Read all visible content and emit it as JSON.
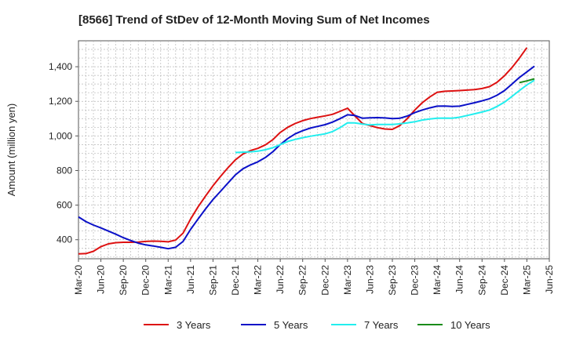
{
  "chart_data": {
    "type": "line",
    "title": "[8566]  Trend of StDev of 12-Month Moving Sum of Net Incomes",
    "ylabel": "Amount (million yen)",
    "xlabel": "",
    "ylim": [
      290,
      1550
    ],
    "yticks": [
      400,
      600,
      800,
      1000,
      1200,
      1400
    ],
    "ytick_labels": [
      "400",
      "600",
      "800",
      "1,000",
      "1,200",
      "1,400"
    ],
    "x_tick_labels": [
      "Mar-20",
      "Jun-20",
      "Sep-20",
      "Dec-20",
      "Mar-21",
      "Jun-21",
      "Sep-21",
      "Dec-21",
      "Mar-22",
      "Jun-22",
      "Sep-22",
      "Dec-22",
      "Mar-23",
      "Jun-23",
      "Sep-23",
      "Dec-23",
      "Mar-24",
      "Jun-24",
      "Sep-24",
      "Dec-24",
      "Mar-25",
      "Jun-25"
    ],
    "grid": true,
    "legend_position": "bottom",
    "series": [
      {
        "name": "3 Years",
        "color": "#dd1111",
        "points": [
          [
            "Mar-20",
            318
          ],
          [
            "Apr-20",
            320
          ],
          [
            "May-20",
            333
          ],
          [
            "Jun-20",
            360
          ],
          [
            "Jul-20",
            376
          ],
          [
            "Aug-20",
            383
          ],
          [
            "Sep-20",
            385
          ],
          [
            "Oct-20",
            385
          ],
          [
            "Nov-20",
            386
          ],
          [
            "Dec-20",
            390
          ],
          [
            "Jan-21",
            392
          ],
          [
            "Feb-21",
            391
          ],
          [
            "Mar-21",
            388
          ],
          [
            "Apr-21",
            398
          ],
          [
            "May-21",
            438
          ],
          [
            "Jun-21",
            520
          ],
          [
            "Jul-21",
            590
          ],
          [
            "Aug-21",
            652
          ],
          [
            "Sep-21",
            712
          ],
          [
            "Oct-21",
            766
          ],
          [
            "Nov-21",
            816
          ],
          [
            "Dec-21",
            862
          ],
          [
            "Jan-22",
            895
          ],
          [
            "Feb-22",
            915
          ],
          [
            "Mar-22",
            928
          ],
          [
            "Apr-22",
            948
          ],
          [
            "May-22",
            978
          ],
          [
            "Jun-22",
            1020
          ],
          [
            "Jul-22",
            1050
          ],
          [
            "Aug-22",
            1072
          ],
          [
            "Sep-22",
            1088
          ],
          [
            "Oct-22",
            1100
          ],
          [
            "Nov-22",
            1108
          ],
          [
            "Dec-22",
            1116
          ],
          [
            "Jan-23",
            1125
          ],
          [
            "Feb-23",
            1142
          ],
          [
            "Mar-23",
            1160
          ],
          [
            "Apr-23",
            1115
          ],
          [
            "May-23",
            1072
          ],
          [
            "Jun-23",
            1060
          ],
          [
            "Jul-23",
            1048
          ],
          [
            "Aug-23",
            1040
          ],
          [
            "Sep-23",
            1038
          ],
          [
            "Oct-23",
            1060
          ],
          [
            "Nov-23",
            1100
          ],
          [
            "Dec-23",
            1150
          ],
          [
            "Jan-24",
            1192
          ],
          [
            "Feb-24",
            1225
          ],
          [
            "Mar-24",
            1252
          ],
          [
            "Apr-24",
            1258
          ],
          [
            "May-24",
            1260
          ],
          [
            "Jun-24",
            1262
          ],
          [
            "Jul-24",
            1265
          ],
          [
            "Aug-24",
            1268
          ],
          [
            "Sep-24",
            1274
          ],
          [
            "Oct-24",
            1285
          ],
          [
            "Nov-24",
            1310
          ],
          [
            "Dec-24",
            1348
          ],
          [
            "Jan-25",
            1395
          ],
          [
            "Feb-25",
            1450
          ],
          [
            "Mar-25",
            1510
          ]
        ]
      },
      {
        "name": "5 Years",
        "color": "#0a10c8",
        "points": [
          [
            "Mar-20",
            532
          ],
          [
            "Apr-20",
            505
          ],
          [
            "May-20",
            485
          ],
          [
            "Jun-20",
            468
          ],
          [
            "Jul-20",
            450
          ],
          [
            "Aug-20",
            432
          ],
          [
            "Sep-20",
            412
          ],
          [
            "Oct-20",
            395
          ],
          [
            "Nov-20",
            380
          ],
          [
            "Dec-20",
            370
          ],
          [
            "Jan-21",
            364
          ],
          [
            "Feb-21",
            356
          ],
          [
            "Mar-21",
            348
          ],
          [
            "Apr-21",
            356
          ],
          [
            "May-21",
            390
          ],
          [
            "Jun-21",
            460
          ],
          [
            "Jul-21",
            520
          ],
          [
            "Aug-21",
            578
          ],
          [
            "Sep-21",
            632
          ],
          [
            "Oct-21",
            680
          ],
          [
            "Nov-21",
            728
          ],
          [
            "Dec-21",
            775
          ],
          [
            "Jan-22",
            810
          ],
          [
            "Feb-22",
            832
          ],
          [
            "Mar-22",
            850
          ],
          [
            "Apr-22",
            875
          ],
          [
            "May-22",
            908
          ],
          [
            "Jun-22",
            950
          ],
          [
            "Jul-22",
            985
          ],
          [
            "Aug-22",
            1012
          ],
          [
            "Sep-22",
            1030
          ],
          [
            "Oct-22",
            1045
          ],
          [
            "Nov-22",
            1055
          ],
          [
            "Dec-22",
            1065
          ],
          [
            "Jan-23",
            1080
          ],
          [
            "Feb-23",
            1100
          ],
          [
            "Mar-23",
            1122
          ],
          [
            "Apr-23",
            1118
          ],
          [
            "May-23",
            1102
          ],
          [
            "Jun-23",
            1105
          ],
          [
            "Jul-23",
            1106
          ],
          [
            "Aug-23",
            1104
          ],
          [
            "Sep-23",
            1100
          ],
          [
            "Oct-23",
            1102
          ],
          [
            "Nov-23",
            1115
          ],
          [
            "Dec-23",
            1135
          ],
          [
            "Jan-24",
            1150
          ],
          [
            "Feb-24",
            1162
          ],
          [
            "Mar-24",
            1172
          ],
          [
            "Apr-24",
            1173
          ],
          [
            "May-24",
            1170
          ],
          [
            "Jun-24",
            1172
          ],
          [
            "Jul-24",
            1182
          ],
          [
            "Aug-24",
            1192
          ],
          [
            "Sep-24",
            1203
          ],
          [
            "Oct-24",
            1215
          ],
          [
            "Nov-24",
            1235
          ],
          [
            "Dec-24",
            1262
          ],
          [
            "Jan-25",
            1300
          ],
          [
            "Feb-25",
            1338
          ],
          [
            "Mar-25",
            1370
          ],
          [
            "Apr-25",
            1403
          ]
        ]
      },
      {
        "name": "7 Years",
        "color": "#22eeee",
        "points": [
          [
            "Dec-21",
            904
          ],
          [
            "Jan-22",
            906
          ],
          [
            "Feb-22",
            908
          ],
          [
            "Mar-22",
            912
          ],
          [
            "Apr-22",
            920
          ],
          [
            "May-22",
            932
          ],
          [
            "Jun-22",
            950
          ],
          [
            "Jul-22",
            968
          ],
          [
            "Aug-22",
            980
          ],
          [
            "Sep-22",
            990
          ],
          [
            "Oct-22",
            998
          ],
          [
            "Nov-22",
            1005
          ],
          [
            "Dec-22",
            1012
          ],
          [
            "Jan-23",
            1025
          ],
          [
            "Feb-23",
            1048
          ],
          [
            "Mar-23",
            1076
          ],
          [
            "Apr-23",
            1075
          ],
          [
            "May-23",
            1068
          ],
          [
            "Jun-23",
            1064
          ],
          [
            "Jul-23",
            1066
          ],
          [
            "Aug-23",
            1066
          ],
          [
            "Sep-23",
            1066
          ],
          [
            "Oct-23",
            1070
          ],
          [
            "Nov-23",
            1075
          ],
          [
            "Dec-23",
            1082
          ],
          [
            "Jan-24",
            1092
          ],
          [
            "Feb-24",
            1098
          ],
          [
            "Mar-24",
            1102
          ],
          [
            "Apr-24",
            1103
          ],
          [
            "May-24",
            1102
          ],
          [
            "Jun-24",
            1108
          ],
          [
            "Jul-24",
            1118
          ],
          [
            "Aug-24",
            1128
          ],
          [
            "Sep-24",
            1138
          ],
          [
            "Oct-24",
            1150
          ],
          [
            "Nov-24",
            1170
          ],
          [
            "Dec-24",
            1195
          ],
          [
            "Jan-25",
            1228
          ],
          [
            "Feb-25",
            1262
          ],
          [
            "Mar-25",
            1295
          ],
          [
            "Apr-25",
            1322
          ]
        ]
      },
      {
        "name": "10 Years",
        "color": "#1a8c1a",
        "points": [
          [
            "Feb-25",
            1308
          ],
          [
            "Mar-25",
            1318
          ],
          [
            "Apr-25",
            1330
          ]
        ]
      }
    ]
  }
}
